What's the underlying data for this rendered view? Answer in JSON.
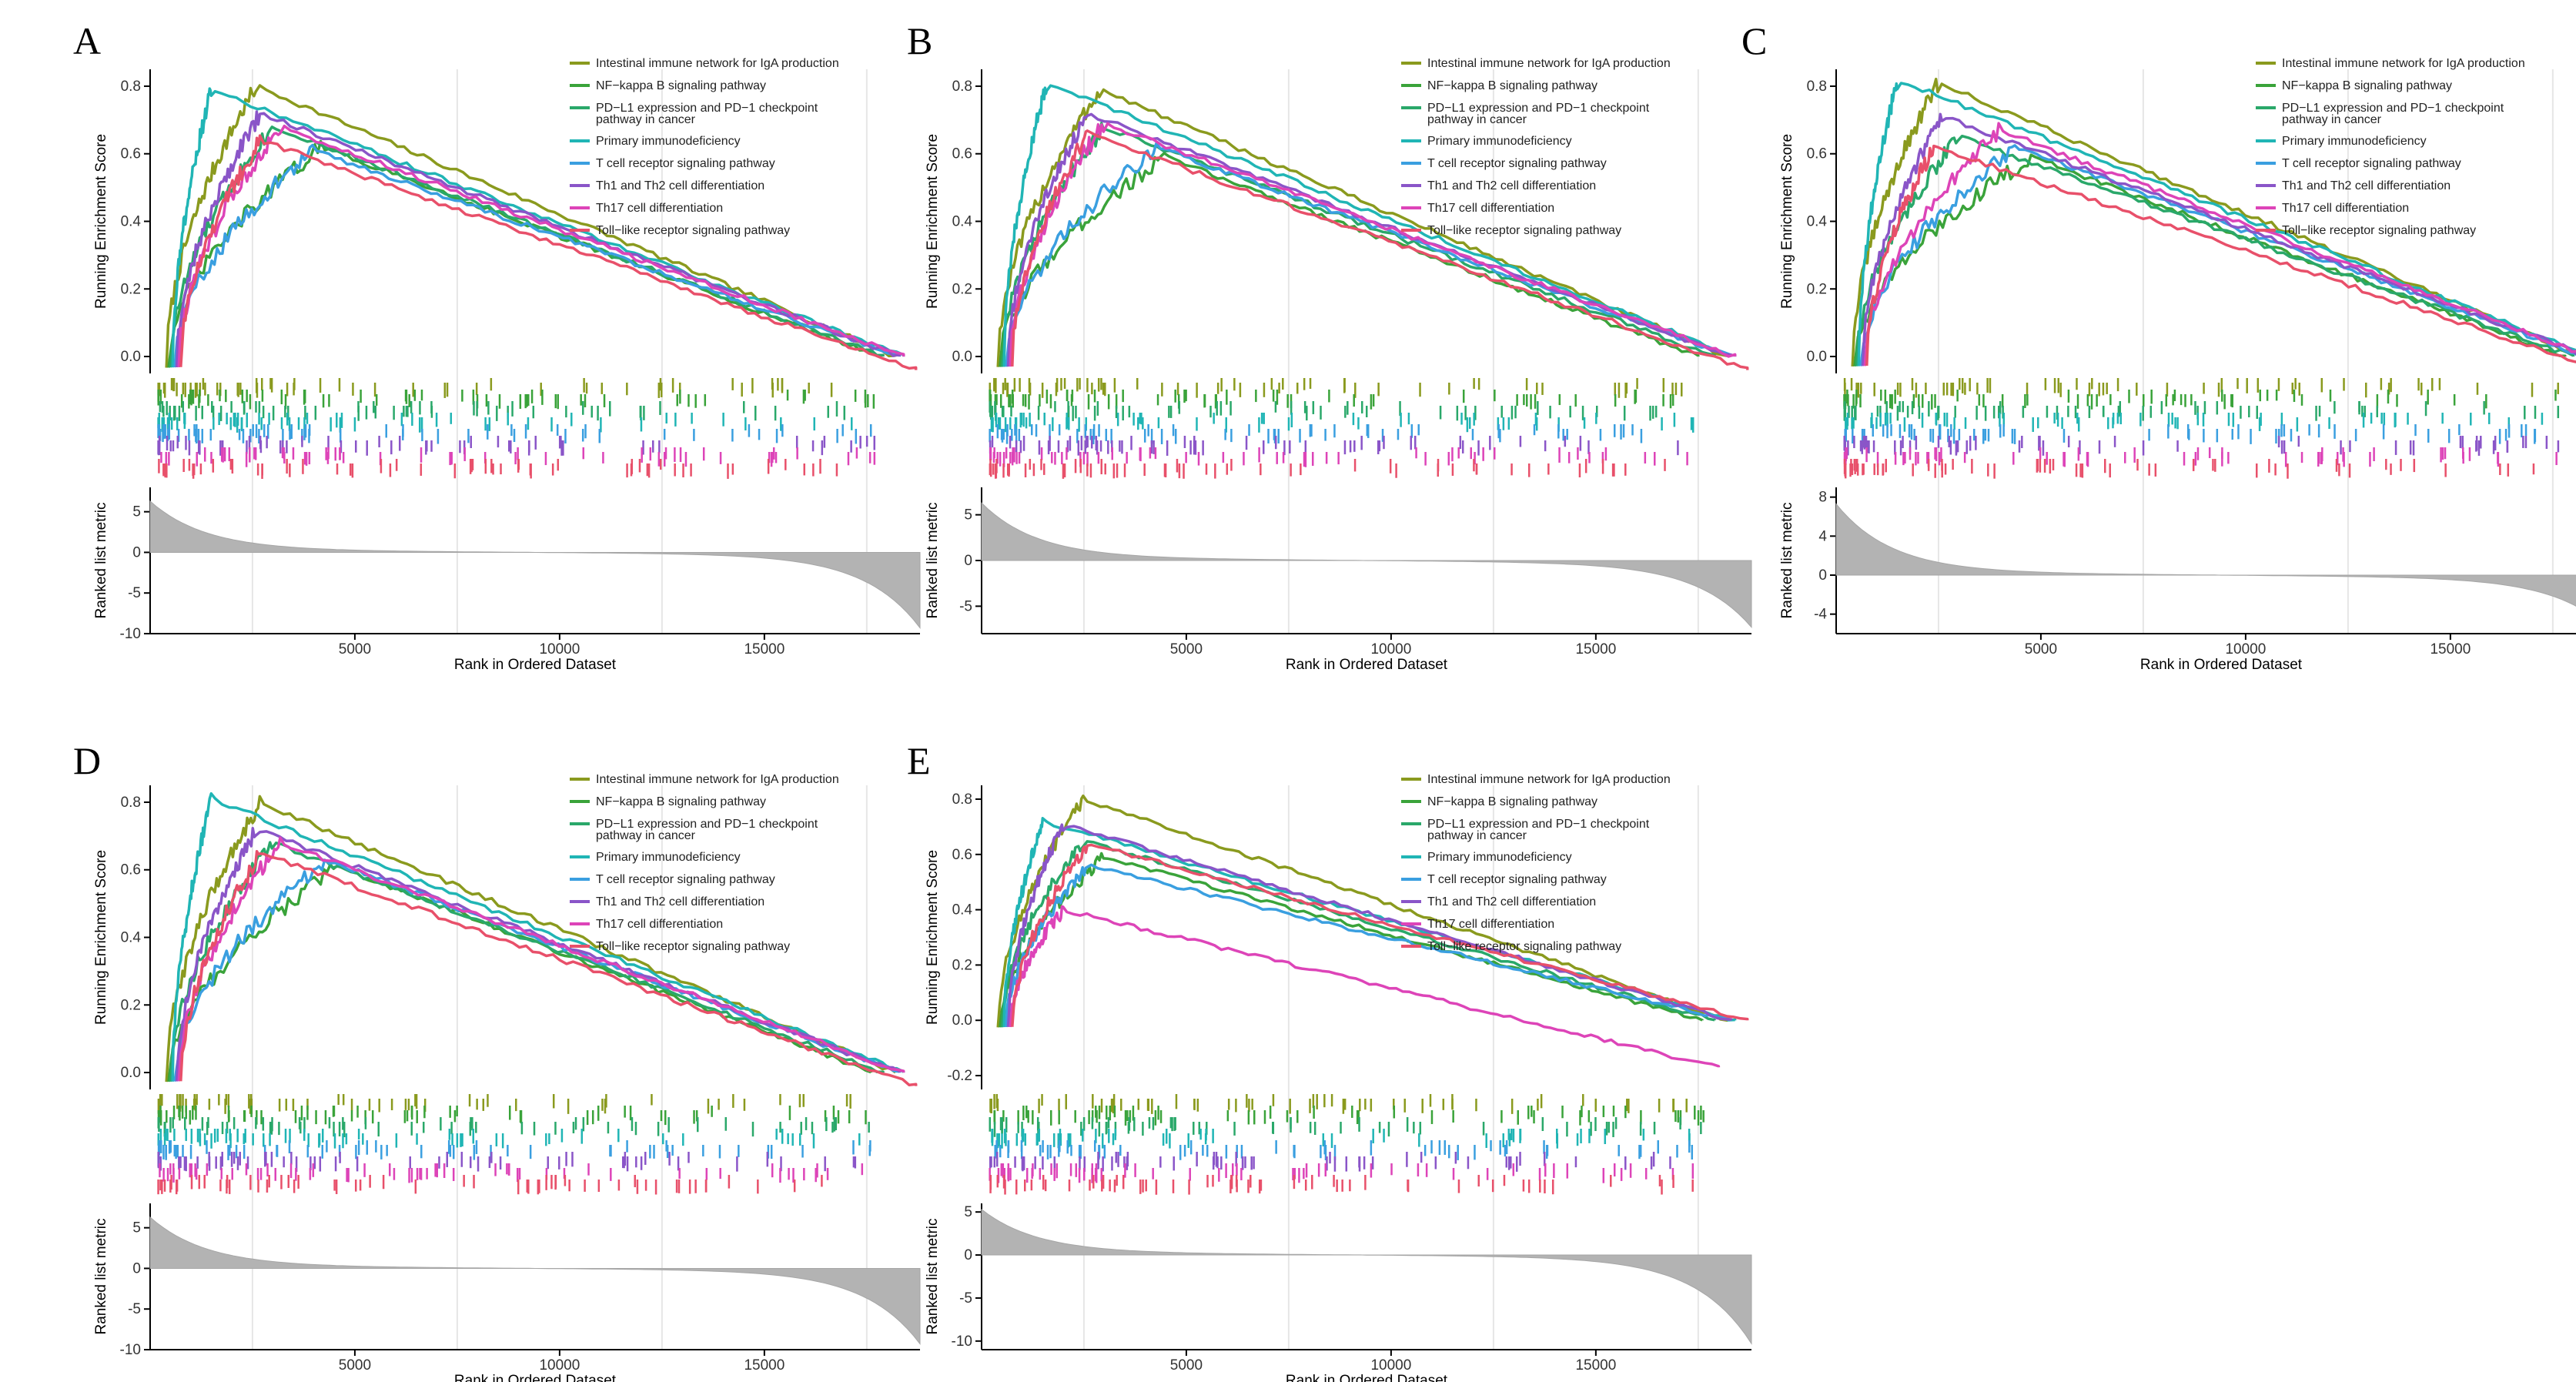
{
  "colors": {
    "Intestinal immune network for IgA production": "#8a9a1e",
    "NF-kappa B signaling pathway": "#3aa33a",
    "PD-L1 expression and PD-1 checkpoint pathway in cancer": "#2aa86a",
    "Primary immunodeficiency": "#20b5b5",
    "T cell receptor signaling pathway": "#3a9fe0",
    "Th1 and Th2 cell differentiation": "#8a55c8",
    "Th17 cell differentiation": "#dd44b8",
    "Toll-like receptor signaling pathway": "#e8506a"
  },
  "chart_data": [
    {
      "panel": "A",
      "type": "line",
      "ylabel": "Running Enrichment Score",
      "ylabel_bottom": "Ranked list metric",
      "xlabel": "Rank in Ordered Dataset",
      "x_ticks": [
        5000,
        10000,
        15000
      ],
      "xlim": [
        1,
        18800
      ],
      "ylim": [
        -0.05,
        0.85
      ],
      "y_ticks": [
        0.0,
        0.2,
        0.4,
        0.6,
        0.8
      ],
      "y_tick_labels": [
        "0.0",
        "0.2",
        "0.4",
        "0.6",
        "0.8"
      ],
      "metric_ylim": [
        -10,
        8
      ],
      "metric_ticks": [
        5,
        0,
        -5,
        -10
      ],
      "metric_tick_labels": [
        "5",
        "0",
        "-5",
        "-10"
      ],
      "metric_range": [
        6,
        -9
      ],
      "series": [
        {
          "name": "Intestinal immune network for IgA production",
          "peak_x": 2600,
          "peak_y": 0.8,
          "end_x": 18200,
          "end_y": 0.0
        },
        {
          "name": "NF-kappa B signaling pathway",
          "peak_x": 4200,
          "peak_y": 0.62,
          "end_x": 17600,
          "end_y": 0.01
        },
        {
          "name": "PD-L1 expression and PD-1 checkpoint pathway in cancer",
          "peak_x": 3000,
          "peak_y": 0.68,
          "end_x": 17900,
          "end_y": 0.0
        },
        {
          "name": "Primary immunodeficiency",
          "peak_x": 1500,
          "peak_y": 0.79,
          "end_x": 18400,
          "end_y": 0.0
        },
        {
          "name": "T cell receptor signaling pathway",
          "peak_x": 4000,
          "peak_y": 0.61,
          "end_x": 18300,
          "end_y": 0.0
        },
        {
          "name": "Th1 and Th2 cell differentiation",
          "peak_x": 2700,
          "peak_y": 0.72,
          "end_x": 18300,
          "end_y": 0.0
        },
        {
          "name": "Th17 cell differentiation",
          "peak_x": 3200,
          "peak_y": 0.68,
          "end_x": 18400,
          "end_y": 0.0
        },
        {
          "name": "Toll-like receptor signaling pathway",
          "peak_x": 2700,
          "peak_y": 0.64,
          "end_x": 18700,
          "end_y": -0.04
        }
      ]
    },
    {
      "panel": "B",
      "type": "line",
      "ylabel": "Running Enrichment Score",
      "ylabel_bottom": "Ranked list metric",
      "xlabel": "Rank in Ordered Dataset",
      "x_ticks": [
        5000,
        10000,
        15000
      ],
      "xlim": [
        1,
        18800
      ],
      "ylim": [
        -0.05,
        0.85
      ],
      "y_ticks": [
        0.0,
        0.2,
        0.4,
        0.6,
        0.8
      ],
      "y_tick_labels": [
        "0.0",
        "0.2",
        "0.4",
        "0.6",
        "0.8"
      ],
      "metric_ylim": [
        -8,
        8
      ],
      "metric_ticks": [
        5,
        0,
        -5
      ],
      "metric_tick_labels": [
        "5",
        "0",
        "-5"
      ],
      "metric_range": [
        6,
        -7
      ],
      "series": [
        {
          "name": "Intestinal immune network for IgA production",
          "peak_x": 2900,
          "peak_y": 0.79,
          "end_x": 18200,
          "end_y": 0.0
        },
        {
          "name": "NF-kappa B signaling pathway",
          "peak_x": 4500,
          "peak_y": 0.59,
          "end_x": 17500,
          "end_y": 0.0
        },
        {
          "name": "PD-L1 expression and PD-1 checkpoint pathway in cancer",
          "peak_x": 3000,
          "peak_y": 0.68,
          "end_x": 17900,
          "end_y": 0.0
        },
        {
          "name": "Primary immunodeficiency",
          "peak_x": 1600,
          "peak_y": 0.81,
          "end_x": 18400,
          "end_y": 0.0
        },
        {
          "name": "T cell receptor signaling pathway",
          "peak_x": 4300,
          "peak_y": 0.62,
          "end_x": 18300,
          "end_y": 0.0
        },
        {
          "name": "Th1 and Th2 cell differentiation",
          "peak_x": 2600,
          "peak_y": 0.72,
          "end_x": 18300,
          "end_y": 0.0
        },
        {
          "name": "Th17 cell differentiation",
          "peak_x": 3000,
          "peak_y": 0.69,
          "end_x": 18400,
          "end_y": 0.0
        },
        {
          "name": "Toll-like receptor signaling pathway",
          "peak_x": 2600,
          "peak_y": 0.66,
          "end_x": 18700,
          "end_y": -0.04
        }
      ]
    },
    {
      "panel": "C",
      "type": "line",
      "ylabel": "Running Enrichment Score",
      "ylabel_bottom": "Ranked list metric",
      "xlabel": "Rank in Ordered Dataset",
      "x_ticks": [
        5000,
        10000,
        15000
      ],
      "xlim": [
        1,
        18800
      ],
      "ylim": [
        -0.05,
        0.85
      ],
      "y_ticks": [
        0.0,
        0.2,
        0.4,
        0.6,
        0.8
      ],
      "y_tick_labels": [
        "0.0",
        "0.2",
        "0.4",
        "0.6",
        "0.8"
      ],
      "metric_ylim": [
        -6,
        9
      ],
      "metric_ticks": [
        8,
        4,
        0,
        -4
      ],
      "metric_tick_labels": [
        "8",
        "4",
        "0",
        "-4"
      ],
      "metric_range": [
        7,
        -5
      ],
      "series": [
        {
          "name": "Intestinal immune network for IgA production",
          "peak_x": 2500,
          "peak_y": 0.81,
          "end_x": 18200,
          "end_y": 0.0
        },
        {
          "name": "NF-kappa B signaling pathway",
          "peak_x": 4800,
          "peak_y": 0.59,
          "end_x": 17800,
          "end_y": 0.0
        },
        {
          "name": "PD-L1 expression and PD-1 checkpoint pathway in cancer",
          "peak_x": 3000,
          "peak_y": 0.65,
          "end_x": 18000,
          "end_y": 0.0
        },
        {
          "name": "Primary immunodeficiency",
          "peak_x": 1500,
          "peak_y": 0.82,
          "end_x": 18400,
          "end_y": 0.0
        },
        {
          "name": "T cell receptor signaling pathway",
          "peak_x": 4400,
          "peak_y": 0.62,
          "end_x": 18300,
          "end_y": 0.0
        },
        {
          "name": "Th1 and Th2 cell differentiation",
          "peak_x": 2600,
          "peak_y": 0.71,
          "end_x": 18400,
          "end_y": 0.0
        },
        {
          "name": "Th17 cell differentiation",
          "peak_x": 4000,
          "peak_y": 0.67,
          "end_x": 18400,
          "end_y": 0.0
        },
        {
          "name": "Toll-like receptor signaling pathway",
          "peak_x": 2400,
          "peak_y": 0.62,
          "end_x": 18700,
          "end_y": -0.04
        }
      ]
    },
    {
      "panel": "D",
      "type": "line",
      "ylabel": "Running Enrichment Score",
      "ylabel_bottom": "Ranked list metric",
      "xlabel": "Rank in Ordered Dataset",
      "x_ticks": [
        5000,
        10000,
        15000
      ],
      "xlim": [
        1,
        18800
      ],
      "ylim": [
        -0.05,
        0.85
      ],
      "y_ticks": [
        0.0,
        0.2,
        0.4,
        0.6,
        0.8
      ],
      "y_tick_labels": [
        "0.0",
        "0.2",
        "0.4",
        "0.6",
        "0.8"
      ],
      "metric_ylim": [
        -10,
        8
      ],
      "metric_ticks": [
        5,
        0,
        -5,
        -10
      ],
      "metric_tick_labels": [
        "5",
        "0",
        "-5",
        "-10"
      ],
      "metric_range": [
        6,
        -9
      ],
      "series": [
        {
          "name": "Intestinal immune network for IgA production",
          "peak_x": 2700,
          "peak_y": 0.8,
          "end_x": 18200,
          "end_y": 0.0
        },
        {
          "name": "NF-kappa B signaling pathway",
          "peak_x": 4600,
          "peak_y": 0.61,
          "end_x": 17600,
          "end_y": 0.0
        },
        {
          "name": "PD-L1 expression and PD-1 checkpoint pathway in cancer",
          "peak_x": 3000,
          "peak_y": 0.68,
          "end_x": 17900,
          "end_y": 0.0
        },
        {
          "name": "Primary immunodeficiency",
          "peak_x": 1500,
          "peak_y": 0.81,
          "end_x": 18400,
          "end_y": 0.0
        },
        {
          "name": "T cell receptor signaling pathway",
          "peak_x": 4300,
          "peak_y": 0.63,
          "end_x": 18300,
          "end_y": 0.0
        },
        {
          "name": "Th1 and Th2 cell differentiation",
          "peak_x": 2600,
          "peak_y": 0.72,
          "end_x": 18300,
          "end_y": 0.0
        },
        {
          "name": "Th17 cell differentiation",
          "peak_x": 3200,
          "peak_y": 0.68,
          "end_x": 18400,
          "end_y": 0.0
        },
        {
          "name": "Toll-like receptor signaling pathway",
          "peak_x": 2700,
          "peak_y": 0.65,
          "end_x": 18700,
          "end_y": -0.04
        }
      ]
    },
    {
      "panel": "E",
      "type": "line",
      "ylabel": "Running Enrichment Score",
      "ylabel_bottom": "Ranked list metric",
      "xlabel": "Rank in Ordered Dataset",
      "x_ticks": [
        5000,
        10000,
        15000
      ],
      "xlim": [
        1,
        18800
      ],
      "ylim": [
        -0.25,
        0.85
      ],
      "y_ticks": [
        -0.2,
        0.0,
        0.2,
        0.4,
        0.6,
        0.8
      ],
      "y_tick_labels": [
        "-0.2",
        "0.0",
        "0.2",
        "0.4",
        "0.6",
        "0.8"
      ],
      "metric_ylim": [
        -11,
        6
      ],
      "metric_ticks": [
        5,
        0,
        -5,
        -10
      ],
      "metric_tick_labels": [
        "5",
        "0",
        "-5",
        "-10"
      ],
      "metric_range": [
        5,
        -10
      ],
      "series": [
        {
          "name": "Intestinal immune network for IgA production",
          "peak_x": 2500,
          "peak_y": 0.8,
          "end_x": 18200,
          "end_y": 0.0
        },
        {
          "name": "NF-kappa B signaling pathway",
          "peak_x": 3000,
          "peak_y": 0.59,
          "end_x": 17600,
          "end_y": 0.0
        },
        {
          "name": "PD-L1 expression and PD-1 checkpoint pathway in cancer",
          "peak_x": 2500,
          "peak_y": 0.65,
          "end_x": 17900,
          "end_y": 0.0
        },
        {
          "name": "Primary immunodeficiency",
          "peak_x": 1500,
          "peak_y": 0.72,
          "end_x": 18400,
          "end_y": 0.0
        },
        {
          "name": "T cell receptor signaling pathway",
          "peak_x": 2600,
          "peak_y": 0.56,
          "end_x": 18300,
          "end_y": 0.0
        },
        {
          "name": "Th1 and Th2 cell differentiation",
          "peak_x": 2000,
          "peak_y": 0.71,
          "end_x": 18300,
          "end_y": 0.0
        },
        {
          "name": "Th17 cell differentiation",
          "peak_x": 2000,
          "peak_y": 0.4,
          "end_x": 18000,
          "end_y": -0.17
        },
        {
          "name": "Toll-like receptor signaling pathway",
          "peak_x": 2600,
          "peak_y": 0.64,
          "end_x": 18700,
          "end_y": 0.0
        }
      ]
    }
  ]
}
